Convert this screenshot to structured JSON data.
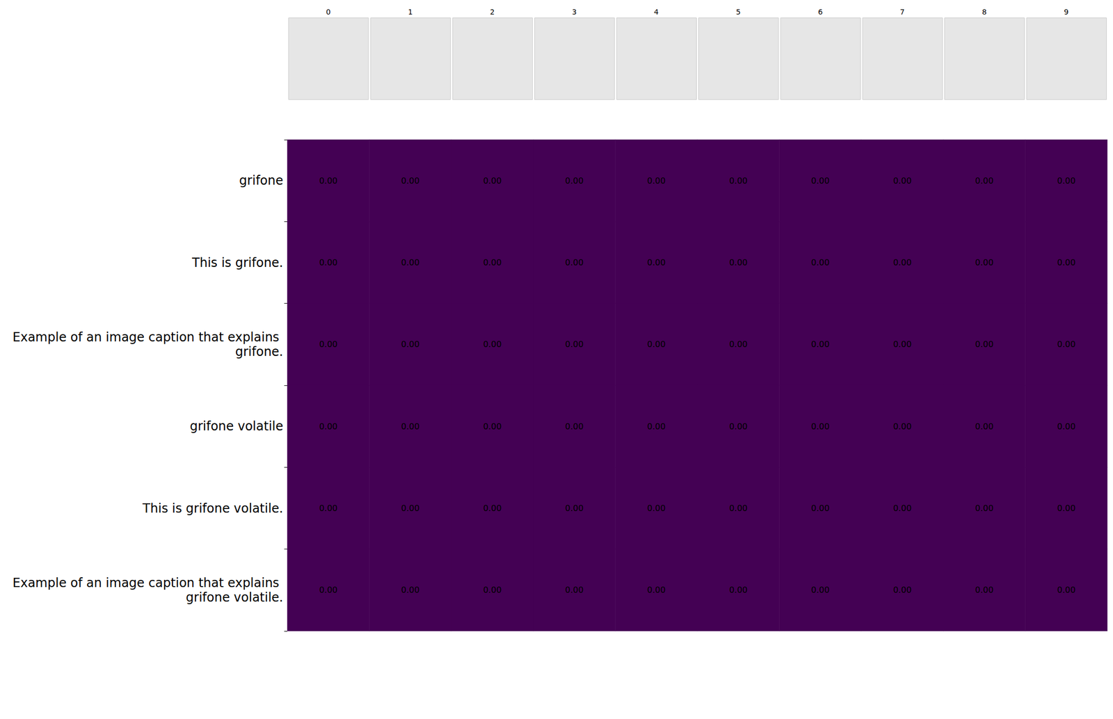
{
  "chart_data": {
    "type": "heatmap",
    "x": [
      "0",
      "1",
      "2",
      "3",
      "4",
      "5",
      "6",
      "7",
      "8",
      "9"
    ],
    "y": [
      "grifone",
      "This is grifone.",
      "Example of an image caption that explains grifone.",
      "grifone volatile",
      "This is grifone volatile.",
      "Example of an image caption that explains grifone volatile."
    ],
    "values": [
      [
        0,
        0,
        0,
        0,
        0,
        0,
        0,
        0,
        0,
        0
      ],
      [
        0,
        0,
        0,
        0,
        0,
        0,
        0,
        0,
        0,
        0
      ],
      [
        0,
        0,
        0,
        0,
        0,
        0,
        0,
        0,
        0,
        0
      ],
      [
        0,
        0,
        0,
        0,
        0,
        0,
        0,
        0,
        0,
        0
      ],
      [
        0,
        0,
        0,
        0,
        0,
        0,
        0,
        0,
        0,
        0
      ],
      [
        0,
        0,
        0,
        0,
        0,
        0,
        0,
        0,
        0,
        0
      ]
    ],
    "value_labels": [
      [
        "0.00",
        "0.00",
        "0.00",
        "0.00",
        "0.00",
        "0.00",
        "0.00",
        "0.00",
        "0.00",
        "0.00"
      ],
      [
        "0.00",
        "0.00",
        "0.00",
        "0.00",
        "0.00",
        "0.00",
        "0.00",
        "0.00",
        "0.00",
        "0.00"
      ],
      [
        "0.00",
        "0.00",
        "0.00",
        "0.00",
        "0.00",
        "0.00",
        "0.00",
        "0.00",
        "0.00",
        "0.00"
      ],
      [
        "0.00",
        "0.00",
        "0.00",
        "0.00",
        "0.00",
        "0.00",
        "0.00",
        "0.00",
        "0.00",
        "0.00"
      ],
      [
        "0.00",
        "0.00",
        "0.00",
        "0.00",
        "0.00",
        "0.00",
        "0.00",
        "0.00",
        "0.00",
        "0.00"
      ],
      [
        "0.00",
        "0.00",
        "0.00",
        "0.00",
        "0.00",
        "0.00",
        "0.00",
        "0.00",
        "0.00",
        "0.00"
      ]
    ],
    "color": "#440154",
    "data_labels": true
  }
}
